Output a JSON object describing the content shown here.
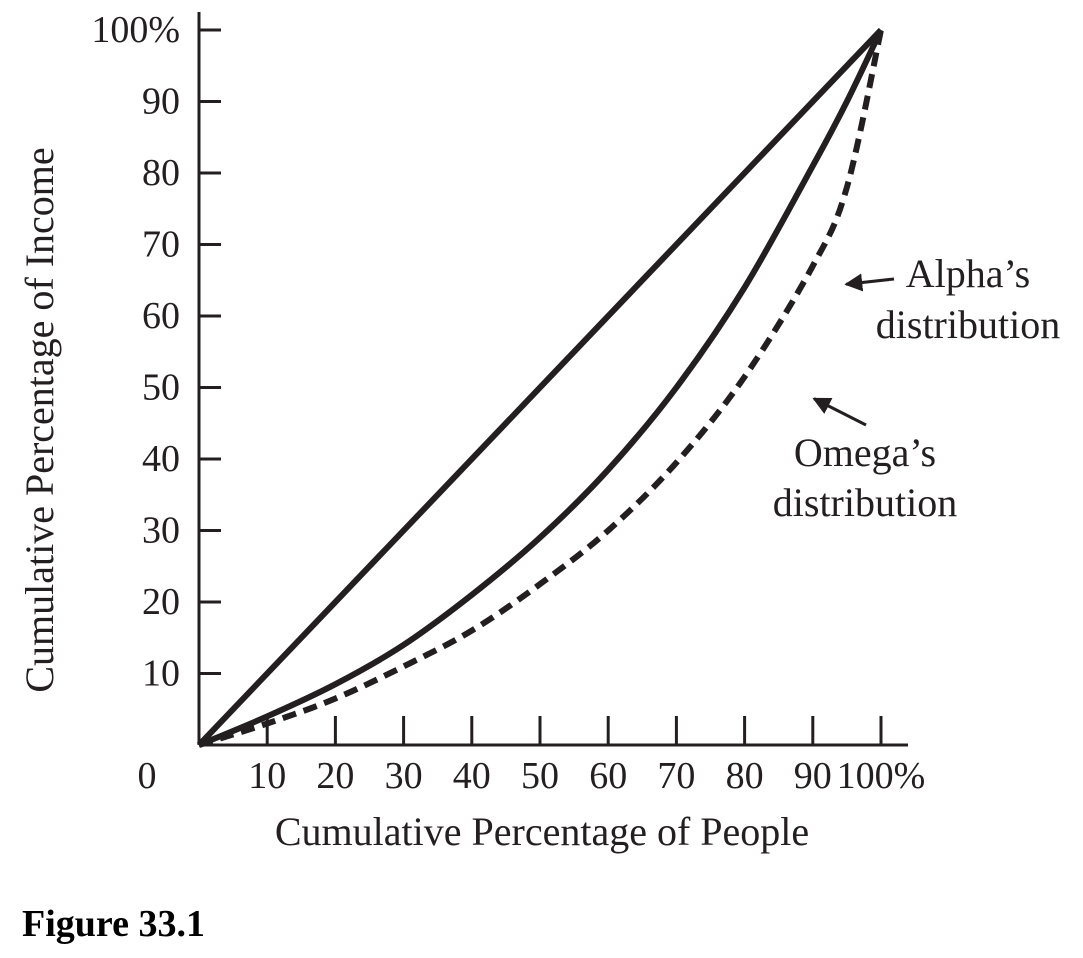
{
  "caption": "Figure 33.1",
  "chart_data": {
    "type": "line",
    "xlabel": "Cumulative Percentage of People",
    "ylabel": "Cumulative Percentage of Income",
    "xlim": [
      0,
      100
    ],
    "ylim": [
      0,
      100
    ],
    "grid": false,
    "origin_label": "0",
    "x_ticks": [
      10,
      20,
      30,
      40,
      50,
      60,
      70,
      80,
      90,
      100
    ],
    "x_tick_labels": [
      "10",
      "20",
      "30",
      "40",
      "50",
      "60",
      "70",
      "80",
      "90",
      "100%"
    ],
    "y_ticks": [
      10,
      20,
      30,
      40,
      50,
      60,
      70,
      80,
      90,
      100
    ],
    "y_tick_labels": [
      "10",
      "20",
      "30",
      "40",
      "50",
      "60",
      "70",
      "80",
      "90",
      "100%"
    ],
    "series": [
      {
        "style": "solid",
        "x": [
          0,
          100
        ],
        "y": [
          0,
          100
        ]
      },
      {
        "style": "solid",
        "x": [
          0,
          10,
          20,
          30,
          40,
          50,
          60,
          70,
          80,
          90,
          95,
          100
        ],
        "y": [
          0,
          4,
          8.5,
          14,
          21,
          29,
          38.5,
          50,
          64,
          81,
          90,
          100
        ]
      },
      {
        "style": "dashed",
        "x": [
          0,
          10,
          20,
          30,
          40,
          50,
          60,
          70,
          80,
          90,
          95,
          100
        ],
        "y": [
          0,
          3,
          6.5,
          11,
          16,
          22.5,
          30,
          39.5,
          51.5,
          67,
          78,
          100
        ]
      }
    ],
    "annotations": [
      {
        "lines": [
          "Alpha’s",
          "distribution"
        ],
        "points_to": [
          94,
          65
        ]
      },
      {
        "lines": [
          "Omega’s",
          "distribution"
        ],
        "points_to": [
          89,
          49
        ]
      }
    ]
  }
}
